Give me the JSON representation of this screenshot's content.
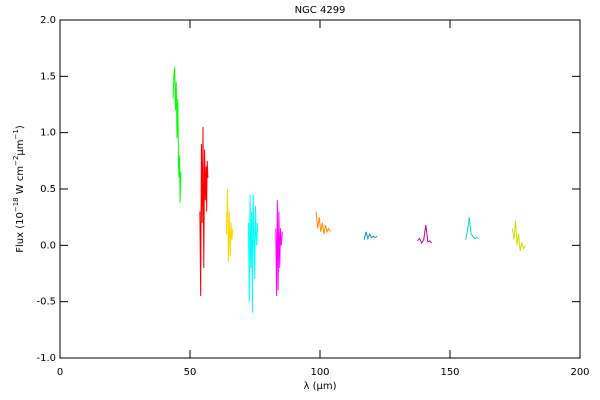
{
  "chart_data": {
    "type": "line",
    "title": "NGC 4299",
    "xlabel": "λ (μm)",
    "ylabel": [
      "Flux (10",
      "−18",
      " W cm",
      "−2",
      "μm",
      "−1",
      ")"
    ],
    "xlim": [
      0,
      200
    ],
    "xticks": [
      0,
      50,
      100,
      150,
      200
    ],
    "ylim": [
      -1.0,
      2.0
    ],
    "yticks": [
      {
        "value": -1.0,
        "label": "-1.0"
      },
      {
        "value": -0.5,
        "label": "-0.5"
      },
      {
        "value": 0,
        "label": "0.0"
      },
      {
        "value": 0.5,
        "label": "0.5"
      },
      {
        "value": 1.0,
        "label": "1.0"
      },
      {
        "value": 1.5,
        "label": "1.5"
      },
      {
        "value": 2.0,
        "label": "2.0"
      }
    ],
    "grid": false,
    "series": [
      {
        "color": "#00ff00",
        "x": [
          43.5,
          43.8,
          44.1,
          44.4,
          44.7,
          45.0,
          45.3,
          45.6,
          45.8,
          46.0,
          46.2,
          46.5
        ],
        "values": [
          1.3,
          1.5,
          1.58,
          1.2,
          1.45,
          0.95,
          1.3,
          0.7,
          0.6,
          0.8,
          0.38,
          0.65
        ]
      },
      {
        "color": "#ff0000",
        "x": [
          53.8,
          54.1,
          54.4,
          54.7,
          55.0,
          55.3,
          55.6,
          55.9,
          56.2,
          56.4,
          56.6,
          56.9
        ],
        "values": [
          0.3,
          -0.45,
          0.9,
          0.2,
          1.05,
          -0.2,
          0.85,
          0.4,
          0.7,
          0.3,
          0.75,
          0.6
        ]
      },
      {
        "color": "#ffd700",
        "x": [
          64.0,
          64.4,
          64.8,
          65.1,
          65.5,
          65.8,
          66.1,
          66.5
        ],
        "values": [
          0.1,
          0.5,
          -0.15,
          0.3,
          -0.1,
          0.2,
          0.05,
          0.15
        ]
      },
      {
        "color": "#00ffff",
        "x": [
          72.5,
          72.8,
          73.1,
          73.4,
          73.7,
          74.0,
          74.3,
          74.6,
          74.9,
          75.2,
          75.6,
          76.0
        ],
        "values": [
          0.2,
          -0.5,
          0.45,
          -0.2,
          0.3,
          -0.6,
          0.45,
          0.1,
          -0.3,
          0.35,
          0.0,
          0.2
        ]
      },
      {
        "color": "#ff00ff",
        "x": [
          83.0,
          83.3,
          83.6,
          83.9,
          84.2,
          84.5,
          84.8,
          85.1,
          85.5
        ],
        "values": [
          0.15,
          -0.45,
          0.4,
          -0.4,
          0.3,
          -0.2,
          0.15,
          0.0,
          0.12
        ]
      },
      {
        "color": "#ff8c00",
        "x": [
          98.5,
          99.1,
          99.7,
          100.3,
          100.9,
          101.5,
          102.1,
          102.7,
          103.3,
          104.0
        ],
        "values": [
          0.3,
          0.15,
          0.25,
          0.12,
          0.2,
          0.1,
          0.18,
          0.12,
          0.15,
          0.12
        ]
      },
      {
        "color": "#0090d0",
        "x": [
          117.0,
          117.7,
          118.4,
          119.1,
          119.8,
          120.5,
          121.2,
          122.0
        ],
        "values": [
          0.05,
          0.12,
          0.06,
          0.1,
          0.07,
          0.08,
          0.07,
          0.08
        ]
      },
      {
        "color": "#c000a0",
        "x": [
          137.5,
          138.3,
          139.1,
          139.9,
          140.7,
          141.5,
          142.2,
          143.0
        ],
        "values": [
          0.04,
          0.06,
          0.02,
          0.05,
          0.18,
          0.03,
          0.04,
          0.02
        ]
      },
      {
        "color": "#00e0d0",
        "x": [
          156.0,
          156.7,
          157.4,
          158.1,
          158.8,
          159.5,
          160.2,
          161.0
        ],
        "values": [
          0.05,
          0.12,
          0.25,
          0.1,
          0.08,
          0.06,
          0.07,
          0.06
        ]
      },
      {
        "color": "#d0e000",
        "x": [
          174.0,
          174.6,
          175.2,
          175.8,
          176.4,
          177.0,
          177.6,
          178.3,
          179.0
        ],
        "values": [
          0.15,
          0.05,
          0.22,
          0.0,
          0.1,
          -0.05,
          0.02,
          -0.03,
          0.0
        ]
      }
    ]
  }
}
